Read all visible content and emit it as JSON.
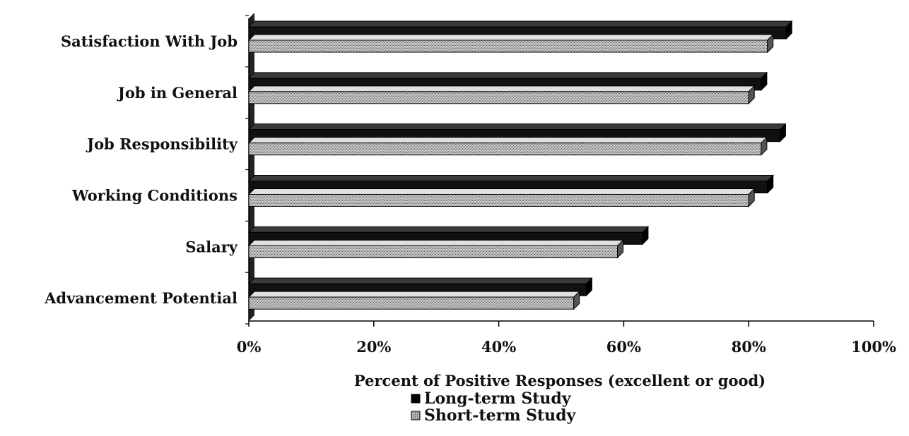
{
  "chart_data": {
    "type": "bar",
    "orientation": "horizontal",
    "categories": [
      "Satisfaction With Job",
      "Job in General",
      "Job Responsibility",
      "Working Conditions",
      "Salary",
      "Advancement Potential"
    ],
    "series": [
      {
        "name": "Long-term Study",
        "values": [
          86,
          82,
          85,
          83,
          63,
          54
        ],
        "color": "#111111"
      },
      {
        "name": "Short-term Study",
        "values": [
          83,
          80,
          82,
          80,
          59,
          52
        ],
        "color": "#b8b8b8"
      }
    ],
    "xlabel": "Percent of Positive Responses (excellent or good)",
    "ylabel": "",
    "xlim": [
      0,
      100
    ],
    "x_ticks": [
      "0%",
      "20%",
      "40%",
      "60%",
      "80%",
      "100%"
    ],
    "grid": false,
    "legend": "bottom",
    "style": "3d"
  }
}
